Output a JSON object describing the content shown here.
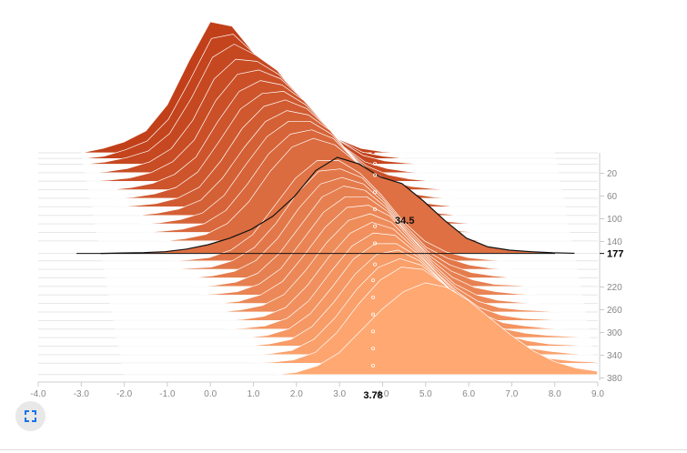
{
  "chart_data": {
    "type": "area",
    "chart_kind": "ridgeline histogram",
    "x_axis": {
      "range": [
        -4.0,
        9.0
      ],
      "ticks": [
        "-4.0",
        "-3.0",
        "-2.0",
        "-1.0",
        "0.0",
        "1.0",
        "2.0",
        "3.0",
        "4.0",
        "5.0",
        "6.0",
        "7.0",
        "8.0",
        "9.0"
      ],
      "hover_value": "3.78"
    },
    "y_axis": {
      "position": "right",
      "ticks": [
        "20",
        "60",
        "100",
        "140",
        "220",
        "260",
        "300",
        "340",
        "380"
      ],
      "step_range": [
        0,
        400
      ],
      "hover_step": "177"
    },
    "hover": {
      "step": 177,
      "x": 3.78,
      "value_label": "34.5"
    },
    "series_count": 27,
    "bin_x": [
      -3,
      -2.5,
      -2,
      -1.5,
      -1,
      -0.5,
      0,
      0.5,
      1,
      1.5,
      2,
      2.5,
      3,
      3.5,
      4,
      4.5,
      5,
      5.5,
      6,
      6.5,
      7,
      7.5,
      8
    ],
    "series": [
      {
        "step": 0,
        "values": [
          0,
          2,
          5,
          10,
          22,
          42,
          60,
          58,
          46,
          36,
          22,
          13,
          6,
          2,
          0.5,
          0,
          0,
          0,
          0,
          0,
          0,
          0,
          0
        ]
      },
      {
        "step": 10,
        "values": [
          0,
          1,
          4,
          8,
          18,
          36,
          55,
          57,
          48,
          40,
          27,
          16,
          8,
          3,
          1,
          0,
          0,
          0,
          0,
          0,
          0,
          0,
          0
        ]
      },
      {
        "step": 20,
        "values": [
          0,
          1,
          3,
          6,
          14,
          30,
          49,
          55,
          50,
          43,
          31,
          19,
          10,
          4,
          1.5,
          0.5,
          0,
          0,
          0,
          0,
          0,
          0,
          0
        ]
      },
      {
        "step": 35,
        "values": [
          0,
          0.5,
          2,
          5,
          11,
          24,
          43,
          52,
          51,
          45,
          35,
          23,
          12,
          5,
          2,
          0.5,
          0,
          0,
          0,
          0,
          0,
          0,
          0
        ]
      },
      {
        "step": 50,
        "values": [
          0,
          0.5,
          1.5,
          4,
          9,
          19,
          37,
          49,
          51,
          47,
          38,
          26,
          15,
          7,
          3,
          1,
          0,
          0,
          0,
          0,
          0,
          0,
          0
        ]
      },
      {
        "step": 65,
        "values": [
          0,
          0,
          1,
          3,
          7,
          15,
          31,
          45,
          50,
          48,
          41,
          30,
          18,
          9,
          4,
          1.5,
          0.5,
          0,
          0,
          0,
          0,
          0,
          0
        ]
      },
      {
        "step": 80,
        "values": [
          0,
          0,
          0.5,
          2,
          5,
          12,
          26,
          41,
          48,
          49,
          43,
          33,
          21,
          11,
          5,
          2,
          0.5,
          0,
          0,
          0,
          0,
          0,
          0
        ]
      },
      {
        "step": 95,
        "values": [
          0,
          0,
          0.5,
          1.5,
          4,
          9,
          21,
          36,
          46,
          49,
          45,
          36,
          24,
          13,
          6,
          2.5,
          1,
          0,
          0,
          0,
          0,
          0,
          0
        ]
      },
      {
        "step": 110,
        "values": [
          0,
          0,
          0,
          1,
          3,
          7,
          17,
          31,
          43,
          48,
          46,
          39,
          27,
          15,
          7,
          3,
          1,
          0,
          0,
          0,
          0,
          0,
          0
        ]
      },
      {
        "step": 125,
        "values": [
          0,
          0,
          0,
          0.5,
          2,
          5,
          13,
          27,
          40,
          47,
          47,
          41,
          30,
          18,
          9,
          4,
          1.5,
          0.5,
          0,
          0,
          0,
          0,
          0
        ]
      },
      {
        "step": 140,
        "values": [
          0,
          0,
          0,
          0.5,
          1.5,
          4,
          10,
          22,
          36,
          45,
          47,
          43,
          33,
          21,
          11,
          5,
          2,
          0.5,
          0,
          0,
          0,
          0,
          0
        ]
      },
      {
        "step": 155,
        "values": [
          0,
          0,
          0,
          0,
          1,
          3,
          8,
          18,
          32,
          43,
          47,
          44,
          36,
          24,
          13,
          6,
          2.5,
          1,
          0,
          0,
          0,
          0,
          0
        ]
      },
      {
        "step": 177,
        "values": [
          0,
          0.2,
          0.4,
          0.8,
          2,
          4,
          7,
          11,
          17,
          26,
          38,
          44,
          41,
          35,
          32,
          24,
          15,
          7,
          3,
          1.5,
          0.8,
          0.3,
          0.1
        ]
      },
      {
        "step": 190,
        "values": [
          0,
          0,
          0,
          0,
          0.5,
          1.5,
          5,
          12,
          25,
          38,
          46,
          46,
          40,
          30,
          18,
          9,
          4,
          1.5,
          0.5,
          0,
          0,
          0,
          0
        ]
      },
      {
        "step": 205,
        "values": [
          0,
          0,
          0,
          0,
          0.5,
          1,
          4,
          10,
          21,
          35,
          45,
          46,
          42,
          32,
          20,
          10,
          5,
          2,
          0.5,
          0,
          0,
          0,
          0
        ]
      },
      {
        "step": 220,
        "values": [
          0,
          0,
          0,
          0,
          0,
          1,
          3,
          8,
          18,
          32,
          43,
          46,
          43,
          34,
          22,
          12,
          6,
          2.5,
          1,
          0,
          0,
          0,
          0
        ]
      },
      {
        "step": 235,
        "values": [
          0,
          0,
          0,
          0,
          0,
          0.5,
          2,
          6,
          15,
          28,
          41,
          46,
          44,
          36,
          24,
          14,
          7,
          3,
          1,
          0.5,
          0,
          0,
          0
        ]
      },
      {
        "step": 250,
        "values": [
          0,
          0,
          0,
          0,
          0,
          0.5,
          1.5,
          5,
          12,
          25,
          38,
          45,
          45,
          38,
          27,
          16,
          8,
          3.5,
          1.5,
          0.5,
          0,
          0,
          0
        ]
      },
      {
        "step": 265,
        "values": [
          0,
          0,
          0,
          0,
          0,
          0,
          1,
          4,
          10,
          22,
          35,
          44,
          45,
          40,
          29,
          18,
          9,
          4,
          1.5,
          0.5,
          0,
          0,
          0
        ]
      },
      {
        "step": 280,
        "values": [
          0,
          0,
          0,
          0,
          0,
          0,
          1,
          3,
          8,
          19,
          32,
          42,
          45,
          41,
          31,
          20,
          11,
          5,
          2,
          1,
          0.5,
          0,
          0
        ]
      },
      {
        "step": 295,
        "values": [
          0,
          0,
          0,
          0,
          0,
          0,
          0.5,
          2,
          6,
          16,
          29,
          40,
          45,
          42,
          33,
          22,
          13,
          6,
          2.5,
          1,
          0.5,
          0,
          0
        ]
      },
      {
        "step": 310,
        "values": [
          0,
          0,
          0,
          0,
          0,
          0,
          0.5,
          1.5,
          5,
          13,
          26,
          38,
          44,
          43,
          35,
          25,
          15,
          7,
          3,
          1.5,
          0.5,
          0,
          0
        ]
      },
      {
        "step": 325,
        "values": [
          0,
          0,
          0,
          0,
          0,
          0,
          0,
          1,
          4,
          11,
          23,
          36,
          43,
          43,
          37,
          27,
          17,
          9,
          4,
          2,
          1,
          0.5,
          0
        ]
      },
      {
        "step": 340,
        "values": [
          0,
          0,
          0,
          0,
          0,
          0,
          0,
          1,
          3,
          9,
          20,
          33,
          42,
          44,
          39,
          30,
          20,
          11,
          5,
          2.5,
          1,
          0.5,
          0
        ]
      },
      {
        "step": 355,
        "values": [
          0,
          0,
          0,
          0,
          0,
          0,
          0,
          0.5,
          2,
          7,
          17,
          30,
          40,
          44,
          41,
          33,
          23,
          14,
          7,
          3,
          1.5,
          0.5,
          0
        ]
      },
      {
        "step": 370,
        "values": [
          0,
          0,
          0,
          0,
          0,
          0,
          0,
          0.5,
          1.5,
          5,
          14,
          27,
          38,
          44,
          43,
          36,
          26,
          16,
          9,
          4,
          2,
          1,
          0.5
        ]
      },
      {
        "step": 390,
        "values": [
          0,
          0,
          0,
          0,
          0,
          0,
          0,
          0,
          1,
          4,
          10,
          20,
          30,
          38,
          42,
          40,
          34,
          26,
          18,
          11,
          6,
          3,
          1.5
        ]
      }
    ],
    "colors": {
      "oldest": "#c1401a",
      "newest": "#ffa872",
      "hover_line": "#111111",
      "hover_marker": "#c1401a",
      "grid": "#e6e6e6",
      "outline": "#ffffff"
    },
    "grid": true
  },
  "ui": {
    "expand_icon": "fullscreen-icon",
    "icon_color": "#1a73e8",
    "button_color": "#e8e8e8"
  }
}
